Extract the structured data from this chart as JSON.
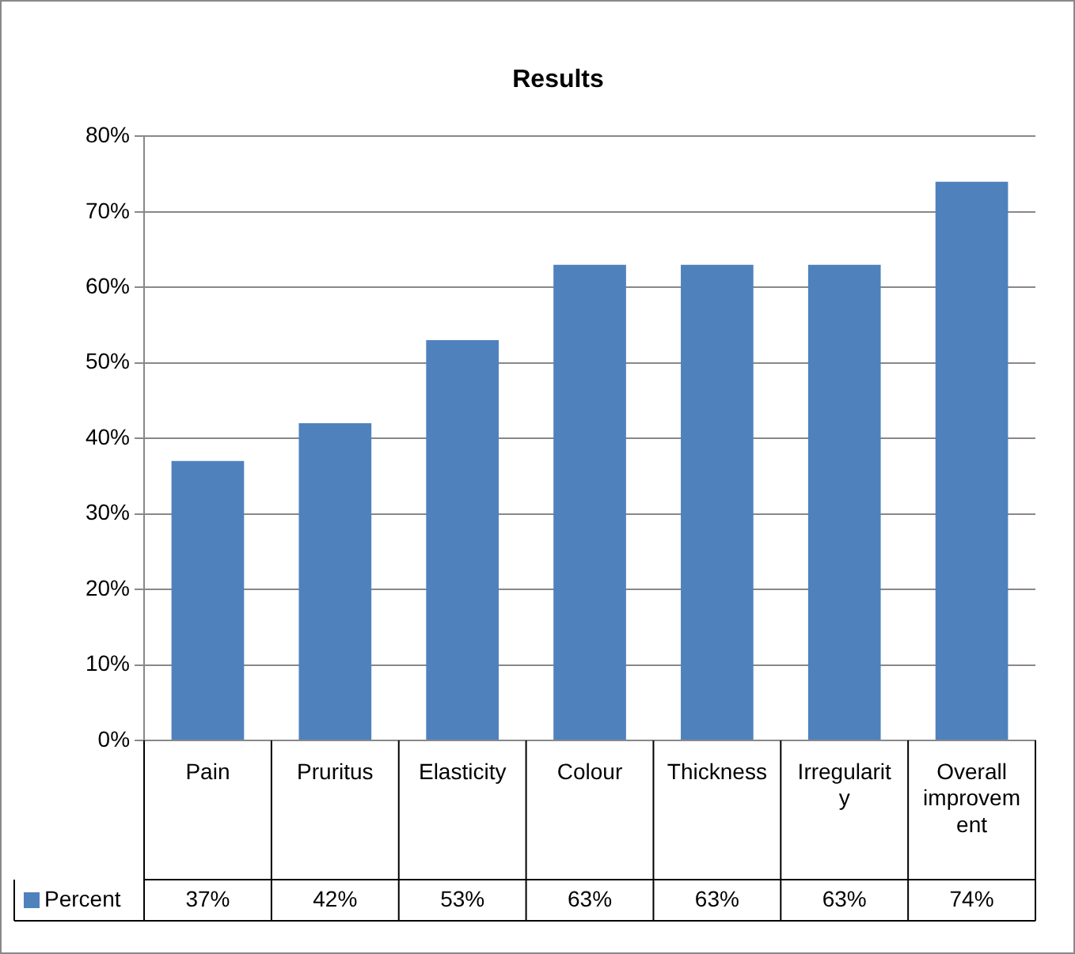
{
  "chart_data": {
    "type": "bar",
    "title": "Results",
    "categories": [
      "Pain",
      "Pruritus",
      "Elasticity",
      "Colour",
      "Thickness",
      "Irregularity",
      "Overall improvement"
    ],
    "series": [
      {
        "name": "Percent",
        "color": "#4f81bd",
        "values": [
          37,
          42,
          53,
          63,
          63,
          63,
          74
        ],
        "value_labels": [
          "37%",
          "42%",
          "53%",
          "63%",
          "63%",
          "63%",
          "74%"
        ]
      }
    ],
    "ylim": [
      0,
      80
    ],
    "yticks": [
      {
        "value": 0,
        "label": "0%"
      },
      {
        "value": 10,
        "label": "10%"
      },
      {
        "value": 20,
        "label": "20%"
      },
      {
        "value": 30,
        "label": "30%"
      },
      {
        "value": 40,
        "label": "40%"
      },
      {
        "value": 50,
        "label": "50%"
      },
      {
        "value": 60,
        "label": "60%"
      },
      {
        "value": 70,
        "label": "70%"
      },
      {
        "value": 80,
        "label": "80%"
      }
    ],
    "grid": "y",
    "legend": "bottom"
  }
}
